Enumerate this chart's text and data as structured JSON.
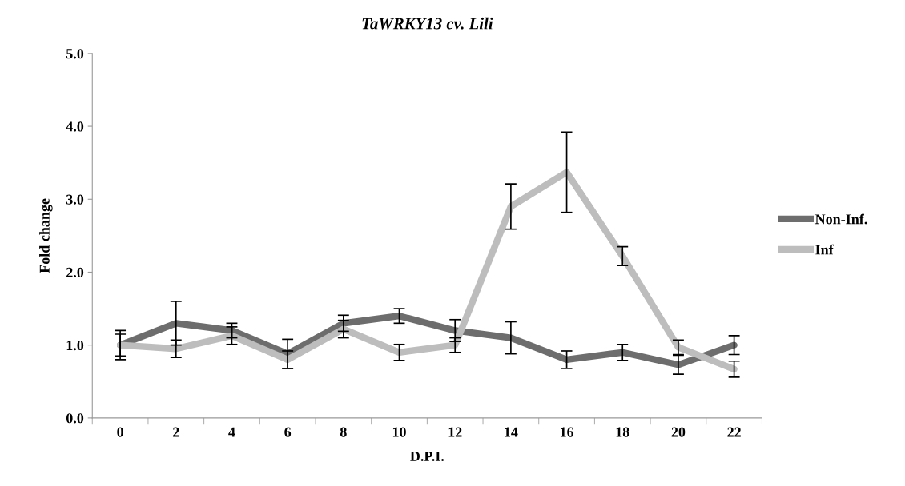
{
  "chart_data": {
    "type": "line",
    "title": "TaWRKY13 cv. Lili",
    "xlabel": "D.P.I.",
    "ylabel": "Fold change",
    "categories": [
      "0",
      "2",
      "4",
      "6",
      "8",
      "10",
      "12",
      "14",
      "16",
      "18",
      "20",
      "22"
    ],
    "series": [
      {
        "name": "Non-Inf.",
        "color": "#6d6d6d",
        "values": [
          1.0,
          1.3,
          1.2,
          0.88,
          1.3,
          1.4,
          1.2,
          1.1,
          0.8,
          0.9,
          0.73,
          1.0
        ],
        "errors": [
          0.2,
          0.3,
          0.1,
          0.2,
          0.11,
          0.1,
          0.15,
          0.22,
          0.12,
          0.11,
          0.13,
          0.13
        ]
      },
      {
        "name": "Inf",
        "color": "#bdbdbd",
        "values": [
          1.0,
          0.95,
          1.13,
          0.8,
          1.22,
          0.9,
          1.0,
          2.9,
          3.37,
          2.22,
          0.97,
          0.67
        ],
        "errors": [
          0.15,
          0.12,
          0.12,
          0.12,
          0.12,
          0.11,
          0.1,
          0.31,
          0.55,
          0.13,
          0.1,
          0.11
        ]
      }
    ],
    "ylim": [
      0,
      5
    ],
    "yticks": [
      {
        "value": 0,
        "label": "0.0"
      },
      {
        "value": 1,
        "label": "1.0"
      },
      {
        "value": 2,
        "label": "2.0"
      },
      {
        "value": 3,
        "label": "3.0"
      },
      {
        "value": 4,
        "label": "4.0"
      },
      {
        "value": 5,
        "label": "5.0"
      }
    ],
    "grid": false,
    "legend": "right",
    "marker": "none",
    "line_style": "solid"
  }
}
